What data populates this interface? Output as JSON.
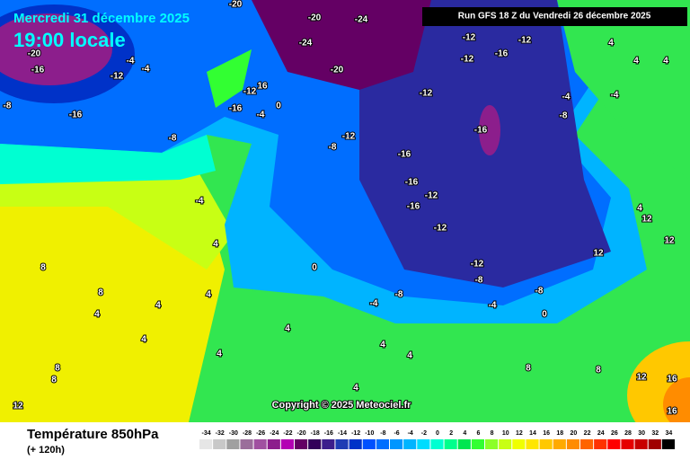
{
  "header": {
    "date": "Mercredi 31 décembre 2025",
    "time": "19:00 locale",
    "run": "Run GFS 18 Z du Vendredi 26 décembre 2025"
  },
  "copyright": "Copyright © 2025 Meteociel.fr",
  "footer": {
    "title": "Température 850hPa",
    "lead": "(+ 120h)"
  },
  "color_scale": {
    "values": [
      -34,
      -32,
      -30,
      -28,
      -26,
      -24,
      -22,
      -20,
      -18,
      -16,
      -14,
      -12,
      -10,
      -8,
      -6,
      -4,
      -2,
      0,
      2,
      4,
      6,
      8,
      10,
      12,
      14,
      16,
      18,
      20,
      22,
      24,
      26,
      28,
      30,
      32,
      34
    ],
    "colors": [
      "#e6e6e6",
      "#c8c8c8",
      "#a0a0a0",
      "#9b6e9b",
      "#a050a0",
      "#8c1e8c",
      "#b400b4",
      "#640064",
      "#32005a",
      "#3c1e8c",
      "#1e3cb4",
      "#0032c8",
      "#0050ff",
      "#006eff",
      "#0096ff",
      "#00b4ff",
      "#00dcff",
      "#00ffd2",
      "#00ff8c",
      "#00e650",
      "#32ff32",
      "#8cff28",
      "#c8ff14",
      "#f0ff00",
      "#ffe600",
      "#ffc800",
      "#ffaa00",
      "#ff8c00",
      "#ff6400",
      "#ff3200",
      "#ff0000",
      "#e60000",
      "#c80000",
      "#a00000",
      "#000000"
    ]
  },
  "map_labels": [
    "-20",
    "-20",
    "-24",
    "-20",
    "-16",
    "-4",
    "-12",
    "-4",
    "-8",
    "-16",
    "-8",
    "-12",
    "16",
    "-16",
    "0",
    "-4",
    "-12",
    "-12",
    "-16",
    "-12",
    "-20",
    "-24",
    "-12",
    "-16",
    "-12",
    "-8",
    "-16",
    "-16",
    "-12",
    "-16",
    "-12",
    "-12",
    "-8",
    "-8",
    "-4",
    "-4",
    "4",
    "4",
    "4",
    "-8",
    "-4",
    "4",
    "4",
    "8",
    "8",
    "4",
    "4",
    "4",
    "8",
    "8",
    "4",
    "4",
    "0",
    "-4",
    "-8",
    "-4",
    "0",
    "4",
    "4",
    "8",
    "12",
    "16",
    "16",
    "12",
    "4",
    "8",
    "12",
    "12",
    "12",
    "4"
  ]
}
